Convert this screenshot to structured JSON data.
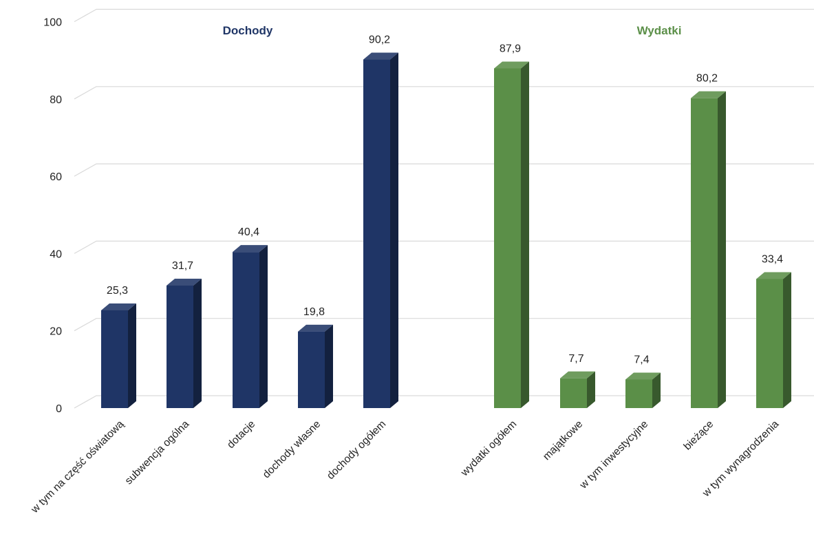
{
  "chart_data": {
    "type": "bar",
    "title": "",
    "xlabel": "",
    "ylabel": "",
    "ylim": [
      0,
      100
    ],
    "y_ticks": [
      0,
      20,
      40,
      60,
      80,
      100
    ],
    "y_tick_labels": [
      "0",
      "20",
      "40",
      "60",
      "80",
      "100"
    ],
    "grid": true,
    "legend": "none",
    "style": "3d-columns",
    "groups": [
      {
        "title": "Dochody",
        "color": "#1f3566",
        "categories": [
          "w tym na część oświatową",
          "subwencja ogólna",
          "dotacje",
          "dochody własne",
          "dochody ogółem"
        ],
        "values": [
          25.3,
          31.7,
          40.4,
          19.8,
          90.2
        ],
        "value_labels": [
          "25,3",
          "31,7",
          "40,4",
          "19,8",
          "90,2"
        ]
      },
      {
        "title": "Wydatki",
        "color": "#5b8f48",
        "categories": [
          "wydatki ogółem",
          "majątkowe",
          "w tym inwestycyjne",
          "bieżące",
          "w tym wynagrodzenia"
        ],
        "values": [
          87.9,
          7.7,
          7.4,
          80.2,
          33.4
        ],
        "value_labels": [
          "87,9",
          "7,7",
          "7,4",
          "80,2",
          "33,4"
        ]
      }
    ]
  }
}
